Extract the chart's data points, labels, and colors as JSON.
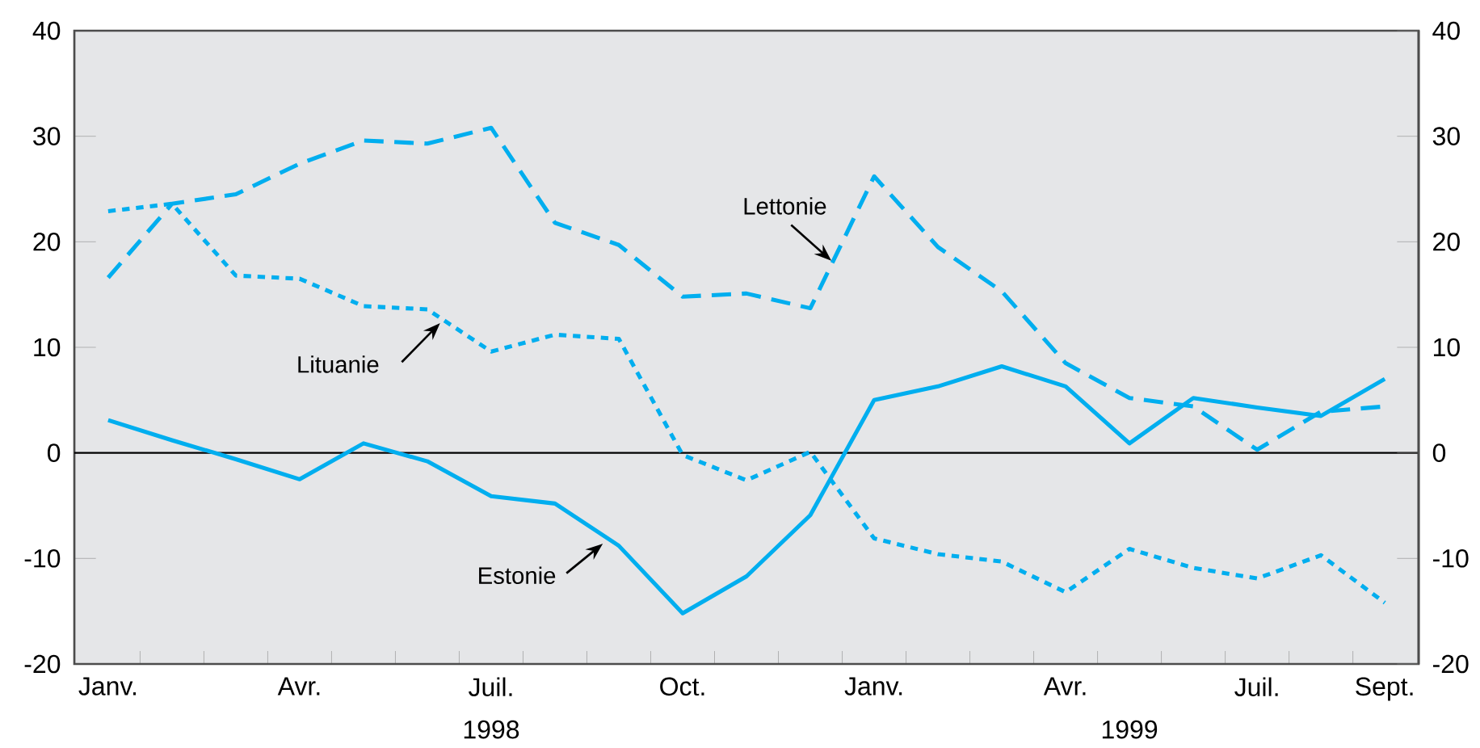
{
  "chart_data": {
    "type": "line",
    "categories": [
      "Janv.",
      null,
      null,
      "Avr.",
      null,
      null,
      "Juil.",
      null,
      null,
      "Oct.",
      null,
      null,
      "Janv.",
      null,
      null,
      "Avr.",
      null,
      null,
      "Juil.",
      null,
      "Sept."
    ],
    "series": [
      {
        "name": "Estonie",
        "color": "#00aeef",
        "line_style": "solid",
        "values": [
          3.1,
          1.2,
          -0.6,
          -2.5,
          0.9,
          -0.8,
          -4.1,
          -4.8,
          -8.8,
          -15.2,
          -11.7,
          -5.9,
          5.0,
          6.3,
          8.2,
          6.3,
          0.9,
          5.2,
          4.3,
          3.5,
          7.0
        ]
      },
      {
        "name": "Lettonie",
        "color": "#00aeef",
        "line_style": "dashed",
        "values": [
          16.6,
          23.6,
          24.5,
          27.4,
          29.6,
          29.3,
          30.8,
          21.8,
          19.7,
          14.8,
          15.1,
          13.7,
          26.2,
          19.5,
          15.3,
          8.5,
          5.2,
          4.4,
          0.3,
          3.9,
          4.4
        ]
      },
      {
        "name": "Lituanie",
        "color": "#00aeef",
        "line_style": "dotted",
        "values": [
          22.9,
          23.6,
          16.8,
          16.5,
          13.9,
          13.6,
          9.6,
          11.2,
          10.8,
          -0.2,
          -2.6,
          0.1,
          -8.1,
          -9.6,
          -10.3,
          -13.2,
          -9.1,
          -10.9,
          -11.9,
          -9.7,
          -14.2
        ]
      }
    ],
    "ylim": [
      -20,
      40
    ],
    "yticks": [
      -20,
      -10,
      0,
      10,
      20,
      30,
      40
    ],
    "y2lim": [
      -20,
      40
    ],
    "y2ticks": [
      -20,
      -10,
      0,
      10,
      20,
      30,
      40
    ],
    "ref_lines": [
      {
        "axis": "y",
        "value": 0,
        "color": "#000000"
      }
    ],
    "annotations": [
      "1998",
      "1999"
    ],
    "grid": false,
    "marker": "none"
  }
}
